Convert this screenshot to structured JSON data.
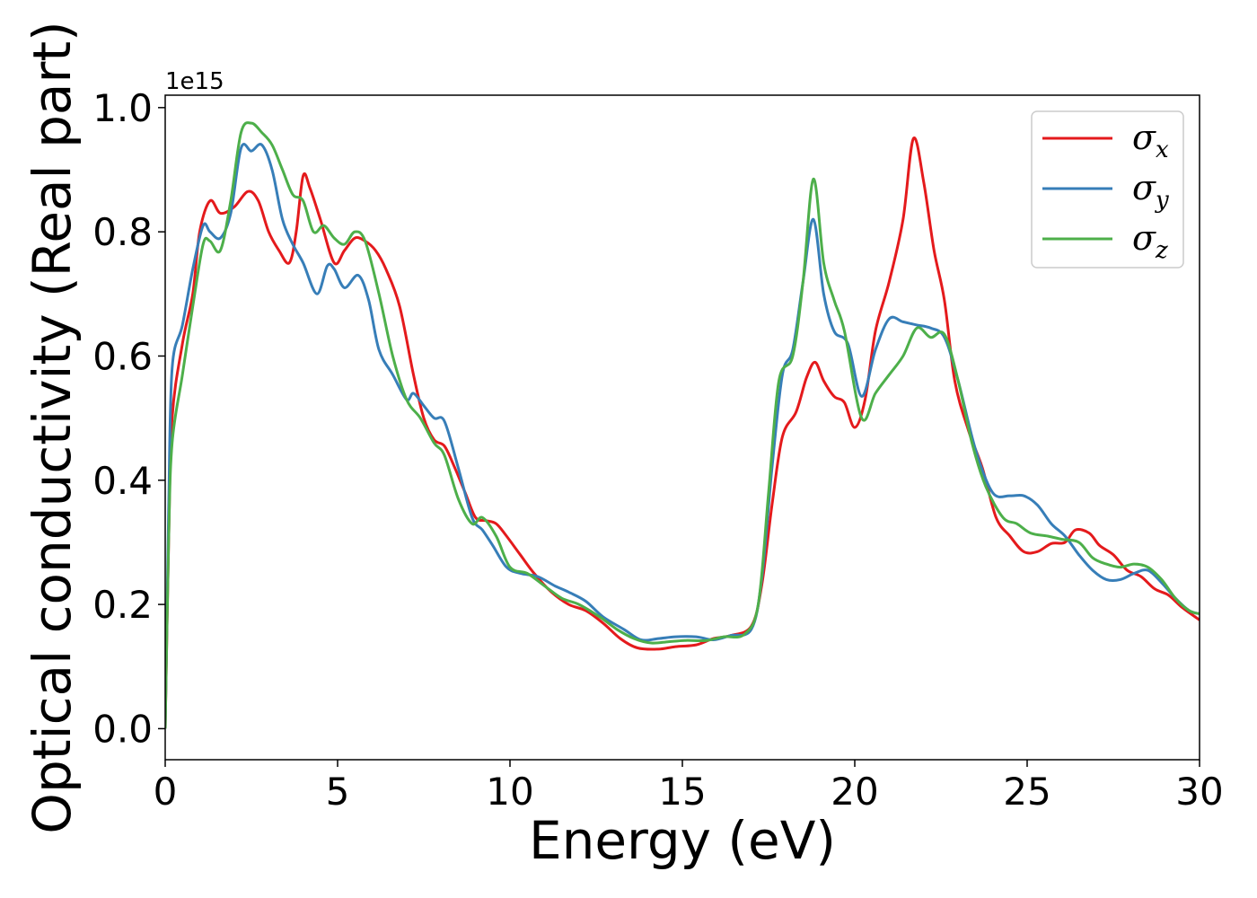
{
  "chart_data": {
    "type": "line",
    "xlabel": "Energy (eV)",
    "ylabel": "Optical conductivity (Real part)",
    "y_offset_text": "1e15",
    "xlim": [
      0,
      30
    ],
    "ylim": [
      -0.05,
      1.02
    ],
    "x_ticks": [
      0,
      5,
      10,
      15,
      20,
      25,
      30
    ],
    "x_tick_labels": [
      "0",
      "5",
      "10",
      "15",
      "20",
      "25",
      "30"
    ],
    "y_ticks": [
      0.0,
      0.2,
      0.4,
      0.6,
      0.8,
      1.0
    ],
    "y_tick_labels": [
      "0.0",
      "0.2",
      "0.4",
      "0.6",
      "0.8",
      "1.0"
    ],
    "grid": false,
    "legend_position": "top-right",
    "series": [
      {
        "name": "σx",
        "symbol": "σ",
        "subscript": "x",
        "color": "#e41a1c",
        "points": [
          [
            0,
            0.0
          ],
          [
            0.1,
            0.3
          ],
          [
            0.2,
            0.5
          ],
          [
            0.5,
            0.62
          ],
          [
            0.8,
            0.7
          ],
          [
            1.0,
            0.8
          ],
          [
            1.3,
            0.85
          ],
          [
            1.6,
            0.83
          ],
          [
            2.0,
            0.84
          ],
          [
            2.4,
            0.865
          ],
          [
            2.7,
            0.85
          ],
          [
            3.0,
            0.8
          ],
          [
            3.3,
            0.77
          ],
          [
            3.6,
            0.75
          ],
          [
            3.8,
            0.8
          ],
          [
            4.0,
            0.89
          ],
          [
            4.2,
            0.87
          ],
          [
            4.5,
            0.82
          ],
          [
            4.9,
            0.75
          ],
          [
            5.2,
            0.77
          ],
          [
            5.5,
            0.79
          ],
          [
            5.8,
            0.785
          ],
          [
            6.1,
            0.77
          ],
          [
            6.4,
            0.74
          ],
          [
            6.8,
            0.68
          ],
          [
            7.2,
            0.57
          ],
          [
            7.5,
            0.5
          ],
          [
            7.8,
            0.465
          ],
          [
            8.1,
            0.455
          ],
          [
            8.4,
            0.42
          ],
          [
            8.7,
            0.38
          ],
          [
            9.0,
            0.34
          ],
          [
            9.3,
            0.335
          ],
          [
            9.6,
            0.33
          ],
          [
            9.9,
            0.31
          ],
          [
            10.3,
            0.28
          ],
          [
            10.7,
            0.25
          ],
          [
            11.2,
            0.22
          ],
          [
            11.7,
            0.2
          ],
          [
            12.2,
            0.19
          ],
          [
            12.7,
            0.17
          ],
          [
            13.2,
            0.145
          ],
          [
            13.7,
            0.13
          ],
          [
            14.3,
            0.128
          ],
          [
            14.8,
            0.132
          ],
          [
            15.4,
            0.135
          ],
          [
            15.9,
            0.145
          ],
          [
            16.4,
            0.15
          ],
          [
            17.0,
            0.165
          ],
          [
            17.3,
            0.23
          ],
          [
            17.6,
            0.36
          ],
          [
            17.9,
            0.47
          ],
          [
            18.3,
            0.51
          ],
          [
            18.6,
            0.565
          ],
          [
            18.85,
            0.59
          ],
          [
            19.1,
            0.56
          ],
          [
            19.4,
            0.535
          ],
          [
            19.7,
            0.525
          ],
          [
            20.0,
            0.485
          ],
          [
            20.3,
            0.53
          ],
          [
            20.6,
            0.64
          ],
          [
            21.0,
            0.72
          ],
          [
            21.4,
            0.82
          ],
          [
            21.7,
            0.95
          ],
          [
            22.0,
            0.88
          ],
          [
            22.3,
            0.77
          ],
          [
            22.6,
            0.69
          ],
          [
            22.9,
            0.56
          ],
          [
            23.3,
            0.48
          ],
          [
            23.7,
            0.42
          ],
          [
            24.1,
            0.34
          ],
          [
            24.5,
            0.31
          ],
          [
            24.9,
            0.285
          ],
          [
            25.3,
            0.285
          ],
          [
            25.7,
            0.298
          ],
          [
            26.1,
            0.3
          ],
          [
            26.4,
            0.32
          ],
          [
            26.8,
            0.315
          ],
          [
            27.1,
            0.295
          ],
          [
            27.5,
            0.28
          ],
          [
            27.9,
            0.255
          ],
          [
            28.3,
            0.245
          ],
          [
            28.7,
            0.225
          ],
          [
            29.1,
            0.215
          ],
          [
            29.5,
            0.195
          ],
          [
            30.0,
            0.175
          ]
        ]
      },
      {
        "name": "σy",
        "symbol": "σ",
        "subscript": "y",
        "color": "#377eb8",
        "points": [
          [
            0,
            0.0
          ],
          [
            0.1,
            0.35
          ],
          [
            0.2,
            0.58
          ],
          [
            0.5,
            0.65
          ],
          [
            0.8,
            0.74
          ],
          [
            1.1,
            0.81
          ],
          [
            1.3,
            0.8
          ],
          [
            1.6,
            0.79
          ],
          [
            1.9,
            0.83
          ],
          [
            2.2,
            0.935
          ],
          [
            2.5,
            0.93
          ],
          [
            2.8,
            0.94
          ],
          [
            3.1,
            0.9
          ],
          [
            3.4,
            0.82
          ],
          [
            3.7,
            0.78
          ],
          [
            4.0,
            0.75
          ],
          [
            4.4,
            0.7
          ],
          [
            4.7,
            0.745
          ],
          [
            4.9,
            0.74
          ],
          [
            5.2,
            0.71
          ],
          [
            5.6,
            0.73
          ],
          [
            5.9,
            0.69
          ],
          [
            6.2,
            0.61
          ],
          [
            6.6,
            0.57
          ],
          [
            7.0,
            0.53
          ],
          [
            7.2,
            0.54
          ],
          [
            7.5,
            0.52
          ],
          [
            7.8,
            0.5
          ],
          [
            8.1,
            0.495
          ],
          [
            8.5,
            0.42
          ],
          [
            8.9,
            0.34
          ],
          [
            9.2,
            0.32
          ],
          [
            9.5,
            0.295
          ],
          [
            9.9,
            0.26
          ],
          [
            10.3,
            0.25
          ],
          [
            10.8,
            0.245
          ],
          [
            11.3,
            0.23
          ],
          [
            11.7,
            0.22
          ],
          [
            12.2,
            0.205
          ],
          [
            12.7,
            0.18
          ],
          [
            13.3,
            0.16
          ],
          [
            13.8,
            0.143
          ],
          [
            14.3,
            0.145
          ],
          [
            14.8,
            0.148
          ],
          [
            15.4,
            0.148
          ],
          [
            15.9,
            0.143
          ],
          [
            16.4,
            0.15
          ],
          [
            17.0,
            0.16
          ],
          [
            17.3,
            0.24
          ],
          [
            17.6,
            0.42
          ],
          [
            17.9,
            0.57
          ],
          [
            18.2,
            0.61
          ],
          [
            18.5,
            0.72
          ],
          [
            18.8,
            0.82
          ],
          [
            19.1,
            0.7
          ],
          [
            19.4,
            0.64
          ],
          [
            19.8,
            0.62
          ],
          [
            20.2,
            0.535
          ],
          [
            20.6,
            0.61
          ],
          [
            21.0,
            0.66
          ],
          [
            21.4,
            0.655
          ],
          [
            21.8,
            0.65
          ],
          [
            22.2,
            0.645
          ],
          [
            22.6,
            0.63
          ],
          [
            23.0,
            0.56
          ],
          [
            23.5,
            0.45
          ],
          [
            24.0,
            0.38
          ],
          [
            24.5,
            0.375
          ],
          [
            24.9,
            0.375
          ],
          [
            25.3,
            0.36
          ],
          [
            25.7,
            0.33
          ],
          [
            26.1,
            0.31
          ],
          [
            26.5,
            0.28
          ],
          [
            26.9,
            0.255
          ],
          [
            27.3,
            0.24
          ],
          [
            27.7,
            0.24
          ],
          [
            28.1,
            0.25
          ],
          [
            28.5,
            0.255
          ],
          [
            28.9,
            0.235
          ],
          [
            29.3,
            0.21
          ],
          [
            29.7,
            0.19
          ],
          [
            30.0,
            0.185
          ]
        ]
      },
      {
        "name": "σz",
        "symbol": "σ",
        "subscript": "z",
        "color": "#4daf4a",
        "points": [
          [
            0,
            0.0
          ],
          [
            0.1,
            0.3
          ],
          [
            0.2,
            0.46
          ],
          [
            0.5,
            0.57
          ],
          [
            0.8,
            0.68
          ],
          [
            1.1,
            0.78
          ],
          [
            1.3,
            0.785
          ],
          [
            1.6,
            0.77
          ],
          [
            1.9,
            0.85
          ],
          [
            2.2,
            0.96
          ],
          [
            2.5,
            0.975
          ],
          [
            2.8,
            0.96
          ],
          [
            3.1,
            0.94
          ],
          [
            3.4,
            0.9
          ],
          [
            3.7,
            0.86
          ],
          [
            4.0,
            0.85
          ],
          [
            4.3,
            0.8
          ],
          [
            4.6,
            0.81
          ],
          [
            4.9,
            0.79
          ],
          [
            5.2,
            0.78
          ],
          [
            5.5,
            0.8
          ],
          [
            5.8,
            0.785
          ],
          [
            6.2,
            0.7
          ],
          [
            6.6,
            0.6
          ],
          [
            7.0,
            0.53
          ],
          [
            7.4,
            0.5
          ],
          [
            7.8,
            0.46
          ],
          [
            8.1,
            0.44
          ],
          [
            8.5,
            0.37
          ],
          [
            8.9,
            0.33
          ],
          [
            9.2,
            0.34
          ],
          [
            9.6,
            0.31
          ],
          [
            10.0,
            0.26
          ],
          [
            10.5,
            0.25
          ],
          [
            11.0,
            0.23
          ],
          [
            11.5,
            0.21
          ],
          [
            12.0,
            0.2
          ],
          [
            12.6,
            0.18
          ],
          [
            13.1,
            0.16
          ],
          [
            13.6,
            0.145
          ],
          [
            14.1,
            0.138
          ],
          [
            14.6,
            0.14
          ],
          [
            15.1,
            0.142
          ],
          [
            15.7,
            0.142
          ],
          [
            16.2,
            0.148
          ],
          [
            16.8,
            0.152
          ],
          [
            17.2,
            0.2
          ],
          [
            17.5,
            0.38
          ],
          [
            17.8,
            0.56
          ],
          [
            18.2,
            0.6
          ],
          [
            18.5,
            0.72
          ],
          [
            18.8,
            0.885
          ],
          [
            19.1,
            0.75
          ],
          [
            19.4,
            0.69
          ],
          [
            19.7,
            0.64
          ],
          [
            20.2,
            0.5
          ],
          [
            20.6,
            0.54
          ],
          [
            21.0,
            0.57
          ],
          [
            21.4,
            0.6
          ],
          [
            21.8,
            0.645
          ],
          [
            22.2,
            0.63
          ],
          [
            22.6,
            0.635
          ],
          [
            23.0,
            0.56
          ],
          [
            23.4,
            0.46
          ],
          [
            23.8,
            0.39
          ],
          [
            24.3,
            0.34
          ],
          [
            24.7,
            0.33
          ],
          [
            25.1,
            0.315
          ],
          [
            25.6,
            0.31
          ],
          [
            26.0,
            0.305
          ],
          [
            26.5,
            0.3
          ],
          [
            26.9,
            0.275
          ],
          [
            27.3,
            0.265
          ],
          [
            27.7,
            0.26
          ],
          [
            28.1,
            0.265
          ],
          [
            28.5,
            0.26
          ],
          [
            28.9,
            0.24
          ],
          [
            29.3,
            0.21
          ],
          [
            29.7,
            0.19
          ],
          [
            30.0,
            0.185
          ]
        ]
      }
    ]
  }
}
